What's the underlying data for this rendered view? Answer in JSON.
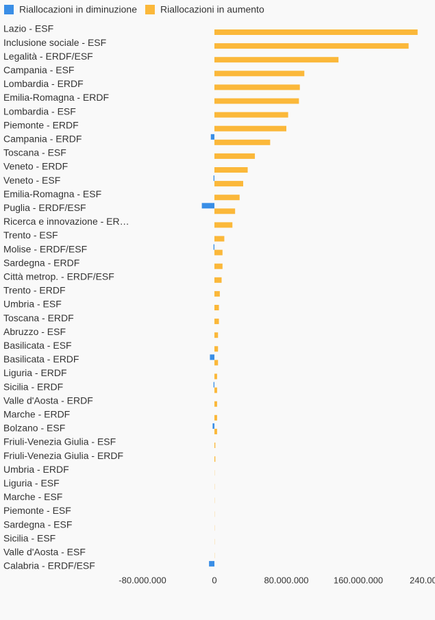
{
  "chart_data": {
    "type": "barh",
    "categories": [
      "Lazio - ESF",
      "Inclusione sociale - ESF",
      "Legalità - ERDF/ESF",
      "Campania - ESF",
      "Lombardia - ERDF",
      "Emilia-Romagna - ERDF",
      "Lombardia - ESF",
      "Piemonte - ERDF",
      "Campania - ERDF",
      "Toscana - ESF",
      "Veneto - ERDF",
      "Veneto - ESF",
      "Emilia-Romagna - ESF",
      "Puglia - ERDF/ESF",
      "Ricerca e innovazione - ER…",
      "Trento - ESF",
      "Molise - ERDF/ESF",
      "Sardegna - ERDF",
      "Città metrop. - ERDF/ESF",
      "Trento - ERDF",
      "Umbria - ESF",
      "Toscana - ERDF",
      "Abruzzo - ESF",
      "Basilicata - ESF",
      "Basilicata - ERDF",
      "Liguria - ERDF",
      "Sicilia - ERDF",
      "Valle d'Aosta - ERDF",
      "Marche - ERDF",
      "Bolzano - ESF",
      "Friuli-Venezia Giulia - ESF",
      "Friuli-Venezia Giulia - ERDF",
      "Umbria - ERDF",
      "Liguria - ESF",
      "Marche - ESF",
      "Piemonte - ESF",
      "Sardegna - ESF",
      "Sicilia - ESF",
      "Valle d'Aosta - ESF",
      "Calabria - ERDF/ESF"
    ],
    "series": [
      {
        "name": "Riallocazioni in diminuzione",
        "color": "#3a8ee6",
        "values": [
          0,
          0,
          0,
          0,
          0,
          0,
          0,
          0,
          -4000000,
          0,
          0,
          -1000000,
          0,
          -14000000,
          0,
          0,
          -1000000,
          0,
          0,
          0,
          0,
          0,
          0,
          0,
          -5000000,
          0,
          -1000000,
          0,
          0,
          -2000000,
          0,
          0,
          0,
          0,
          0,
          0,
          0,
          0,
          0,
          -6000000
        ]
      },
      {
        "name": "Riallocazioni in aumento",
        "color": "#fbb83a",
        "values": [
          226000000,
          216000000,
          138000000,
          100000000,
          95000000,
          94000000,
          82000000,
          80000000,
          62000000,
          45000000,
          37000000,
          32000000,
          28000000,
          23000000,
          20000000,
          11000000,
          9000000,
          9000000,
          8000000,
          6000000,
          5000000,
          5000000,
          4000000,
          4000000,
          4000000,
          3000000,
          3000000,
          3000000,
          3000000,
          3000000,
          1000000,
          1000000,
          200000,
          200000,
          200000,
          200000,
          200000,
          200000,
          200000,
          0
        ]
      }
    ],
    "xlim": [
      -80000000,
      240000000
    ],
    "xticks": [
      {
        "value": -80000000,
        "label": "-80.000.000"
      },
      0,
      {
        "value": 80000000,
        "label": "80.000.000"
      },
      {
        "value": 160000000,
        "label": "160.000.000"
      },
      {
        "value": 240000000,
        "label": "240.000…"
      }
    ],
    "grid": false
  }
}
